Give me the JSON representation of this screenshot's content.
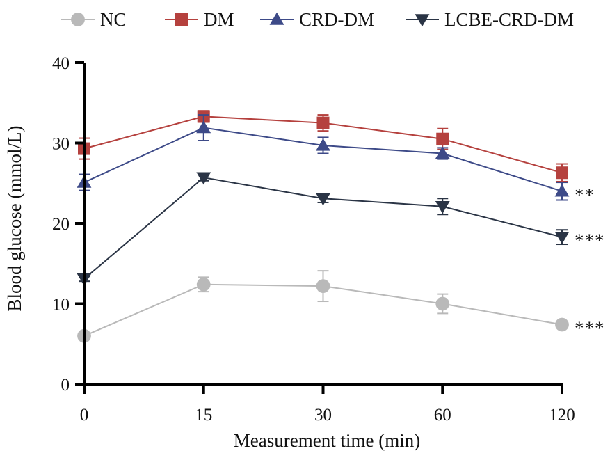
{
  "chart_data": {
    "type": "line",
    "xlabel": "Measurement time (min)",
    "ylabel": "Blood glucose (mmol/L)",
    "categories": [
      "0",
      "15",
      "30",
      "60",
      "120"
    ],
    "ylim": [
      0,
      40
    ],
    "yticks": [
      0,
      10,
      20,
      30,
      40
    ],
    "grid": false,
    "legend_position": "top",
    "series": [
      {
        "name": "NC",
        "color": "#b9b9b9",
        "marker": "circle",
        "values": [
          6.0,
          12.4,
          12.2,
          10.0,
          7.4
        ],
        "errors": [
          0.4,
          0.9,
          1.9,
          1.2,
          0.4
        ]
      },
      {
        "name": "DM",
        "color": "#b5413e",
        "marker": "square",
        "values": [
          29.3,
          33.3,
          32.5,
          30.5,
          26.3
        ],
        "errors": [
          1.3,
          0.7,
          1.0,
          1.3,
          1.1
        ]
      },
      {
        "name": "CRD-DM",
        "color": "#3d4a88",
        "marker": "triangle-up",
        "values": [
          25.1,
          31.9,
          29.7,
          28.7,
          24.0
        ],
        "errors": [
          1.0,
          1.6,
          1.0,
          0.7,
          1.1
        ]
      },
      {
        "name": "LCBE-CRD-DM",
        "color": "#2a3445",
        "marker": "triangle-down",
        "values": [
          13.1,
          25.7,
          23.1,
          22.1,
          18.3
        ],
        "errors": [
          0.3,
          0.4,
          0.5,
          1.0,
          0.9
        ]
      }
    ],
    "annotations": [
      {
        "text": "**",
        "series": "CRD-DM",
        "x": "120"
      },
      {
        "text": "***",
        "series": "LCBE-CRD-DM",
        "x": "120"
      },
      {
        "text": "***",
        "series": "NC",
        "x": "120"
      }
    ]
  }
}
